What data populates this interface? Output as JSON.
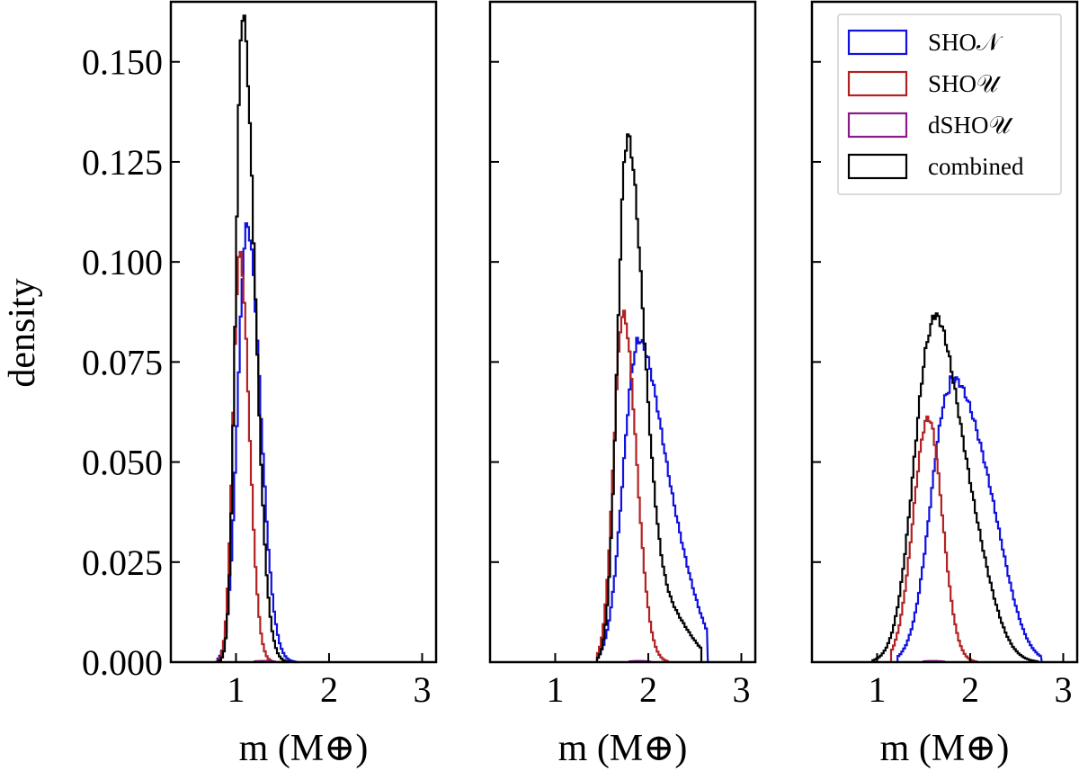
{
  "chart_data": {
    "type": "histogram-step",
    "ylabel": "density",
    "xlabel": "m (M⊕)",
    "xlim": [
      0.3,
      3.15
    ],
    "ylim": [
      0,
      0.165
    ],
    "xticks": [
      "1",
      "2",
      "3"
    ],
    "yticks": [
      "0.000",
      "0.025",
      "0.050",
      "0.075",
      "0.100",
      "0.125",
      "0.150"
    ],
    "legend": {
      "placement": "top-right of third panel",
      "entries": [
        {
          "label": "SHO𝒩",
          "color": "#1010e0"
        },
        {
          "label": "SHO𝒰",
          "color": "#b22222"
        },
        {
          "label": "dSHO𝒰",
          "color": "#8b1a8b"
        },
        {
          "label": "combined",
          "color": "#000000"
        }
      ]
    },
    "panels": [
      {
        "name": "panel-1",
        "series": [
          {
            "name": "SHO𝒩",
            "peak_x": 1.12,
            "peak_y": 0.109,
            "xmin": 0.8,
            "xmax": 1.62,
            "sigma_left": 0.1,
            "sigma_right": 0.14,
            "skew_tail": 0
          },
          {
            "name": "SHO𝒰",
            "peak_x": 1.04,
            "peak_y": 0.102,
            "xmin": 0.8,
            "xmax": 1.55,
            "sigma_left": 0.07,
            "sigma_right": 0.1,
            "skew_tail": 0
          },
          {
            "name": "dSHO𝒰",
            "peak_x": 1.3,
            "peak_y": 0.0003,
            "xmin": 1.2,
            "xmax": 1.4,
            "sigma_left": 0.1,
            "sigma_right": 0.1,
            "skew_tail": 0
          },
          {
            "name": "combined",
            "peak_x": 1.07,
            "peak_y": 0.162,
            "xmin": 0.78,
            "xmax": 1.65,
            "sigma_left": 0.07,
            "sigma_right": 0.13,
            "skew_tail": 0
          }
        ]
      },
      {
        "name": "panel-2",
        "series": [
          {
            "name": "SHO𝒩",
            "peak_x": 1.88,
            "peak_y": 0.078,
            "xmin": 1.45,
            "xmax": 2.62,
            "sigma_left": 0.15,
            "sigma_right": 0.25,
            "skew_tail": 0.018
          },
          {
            "name": "SHO𝒰",
            "peak_x": 1.73,
            "peak_y": 0.087,
            "xmin": 1.45,
            "xmax": 2.2,
            "sigma_left": 0.1,
            "sigma_right": 0.14,
            "skew_tail": 0
          },
          {
            "name": "dSHO𝒰",
            "peak_x": 1.9,
            "peak_y": 0.0003,
            "xmin": 1.8,
            "xmax": 2.0,
            "sigma_left": 0.1,
            "sigma_right": 0.1,
            "skew_tail": 0
          },
          {
            "name": "combined",
            "peak_x": 1.77,
            "peak_y": 0.13,
            "xmin": 1.45,
            "xmax": 2.55,
            "sigma_left": 0.1,
            "sigma_right": 0.18,
            "skew_tail": 0.012
          }
        ]
      },
      {
        "name": "panel-3",
        "series": [
          {
            "name": "SHO𝒩",
            "peak_x": 1.78,
            "peak_y": 0.068,
            "xmin": 1.22,
            "xmax": 2.75,
            "sigma_left": 0.2,
            "sigma_right": 0.3,
            "skew_tail": 0.02
          },
          {
            "name": "SHO𝒰",
            "peak_x": 1.55,
            "peak_y": 0.061,
            "xmin": 1.15,
            "xmax": 2.05,
            "sigma_left": 0.16,
            "sigma_right": 0.15,
            "skew_tail": 0
          },
          {
            "name": "dSHO𝒰",
            "peak_x": 1.6,
            "peak_y": 0.0003,
            "xmin": 1.5,
            "xmax": 1.7,
            "sigma_left": 0.1,
            "sigma_right": 0.1,
            "skew_tail": 0
          },
          {
            "name": "combined",
            "peak_x": 1.6,
            "peak_y": 0.084,
            "xmin": 0.95,
            "xmax": 2.72,
            "sigma_left": 0.2,
            "sigma_right": 0.26,
            "skew_tail": 0.02
          }
        ]
      }
    ]
  }
}
